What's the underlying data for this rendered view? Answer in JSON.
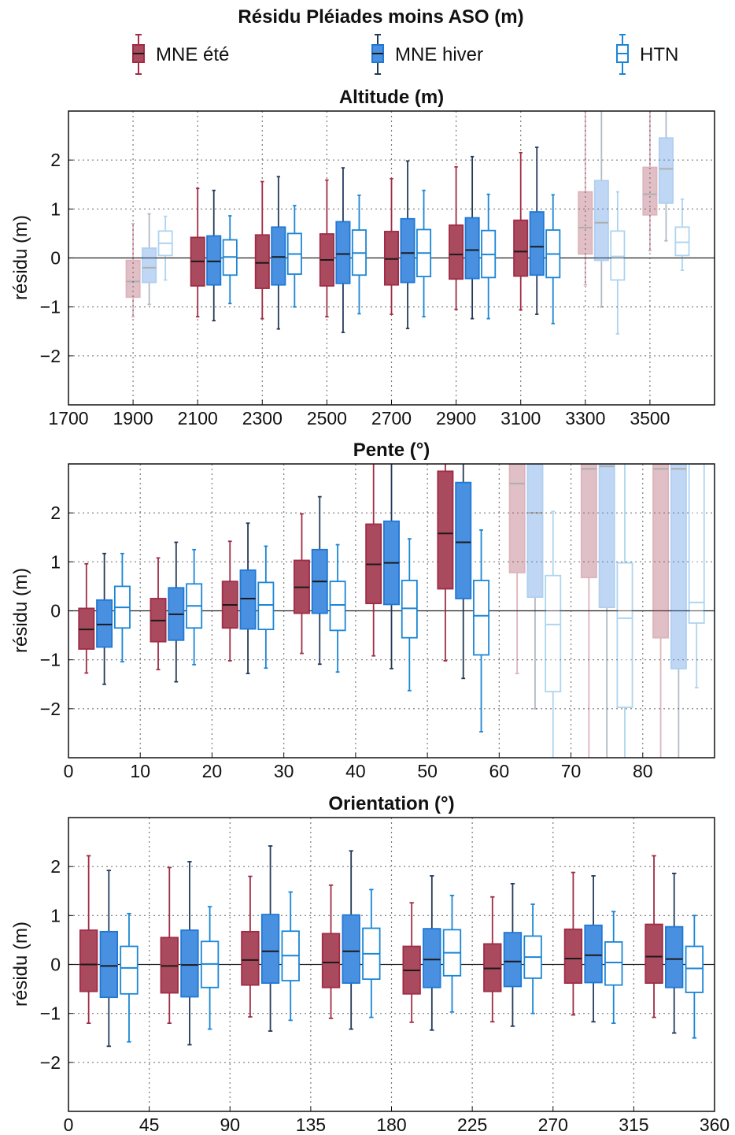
{
  "figure": {
    "title": "Résidu Pléiades moins ASO (m)"
  },
  "legend": {
    "items": [
      {
        "label": "MNE été",
        "color": "#a02c45",
        "filled": true
      },
      {
        "label": "MNE hiver",
        "color": "#1f78d6",
        "filled": true
      },
      {
        "label": "HTN",
        "color": "#1a86d6",
        "filled": false
      }
    ]
  },
  "colors": {
    "ete": "#a02c45",
    "hiver": "#1f78d6",
    "htn": "#1a86d6",
    "whisker_hiver": "#243a5a",
    "zero_line": "#222222",
    "grid": "#7a7a7a"
  },
  "chart_data": [
    {
      "type": "box",
      "title": "Altitude (m)",
      "ylabel": "résidu (m)",
      "xlim": [
        1700,
        3700
      ],
      "ylim": [
        -3,
        3
      ],
      "xticks": [
        1700,
        1900,
        2100,
        2300,
        2500,
        2700,
        2900,
        3100,
        3300,
        3500
      ],
      "yticks": [
        -2,
        -1,
        0,
        1,
        2
      ],
      "grid": true,
      "groups": [
        {
          "x": 1950,
          "faded": true,
          "ete": {
            "min": -1.2,
            "q1": -0.8,
            "median": -0.48,
            "q3": -0.05,
            "max": 0.7
          },
          "hiver": {
            "min": -0.95,
            "q1": -0.5,
            "median": -0.2,
            "q3": 0.2,
            "max": 0.9
          },
          "htn": {
            "min": -0.45,
            "q1": 0.05,
            "median": 0.3,
            "q3": 0.55,
            "max": 0.85
          }
        },
        {
          "x": 2150,
          "faded": false,
          "ete": {
            "min": -1.2,
            "q1": -0.57,
            "median": -0.07,
            "q3": 0.42,
            "max": 1.42
          },
          "hiver": {
            "min": -1.28,
            "q1": -0.55,
            "median": -0.07,
            "q3": 0.45,
            "max": 1.38
          },
          "htn": {
            "min": -0.93,
            "q1": -0.35,
            "median": 0.02,
            "q3": 0.37,
            "max": 0.86
          }
        },
        {
          "x": 2350,
          "faded": false,
          "ete": {
            "min": -1.24,
            "q1": -0.62,
            "median": -0.1,
            "q3": 0.47,
            "max": 1.56
          },
          "hiver": {
            "min": -1.45,
            "q1": -0.55,
            "median": 0.02,
            "q3": 0.63,
            "max": 1.66
          },
          "htn": {
            "min": -1.0,
            "q1": -0.33,
            "median": 0.08,
            "q3": 0.5,
            "max": 1.07
          }
        },
        {
          "x": 2550,
          "faded": false,
          "ete": {
            "min": -1.2,
            "q1": -0.57,
            "median": -0.04,
            "q3": 0.49,
            "max": 1.59
          },
          "hiver": {
            "min": -1.52,
            "q1": -0.52,
            "median": 0.08,
            "q3": 0.74,
            "max": 1.84
          },
          "htn": {
            "min": -1.14,
            "q1": -0.35,
            "median": 0.1,
            "q3": 0.57,
            "max": 1.28
          }
        },
        {
          "x": 2750,
          "faded": false,
          "ete": {
            "min": -1.15,
            "q1": -0.55,
            "median": -0.02,
            "q3": 0.54,
            "max": 1.62
          },
          "hiver": {
            "min": -1.44,
            "q1": -0.5,
            "median": 0.1,
            "q3": 0.8,
            "max": 1.98
          },
          "htn": {
            "min": -1.2,
            "q1": -0.38,
            "median": 0.1,
            "q3": 0.58,
            "max": 1.38
          }
        },
        {
          "x": 2950,
          "faded": false,
          "ete": {
            "min": -1.05,
            "q1": -0.43,
            "median": 0.07,
            "q3": 0.67,
            "max": 1.86
          },
          "hiver": {
            "min": -1.24,
            "q1": -0.42,
            "median": 0.16,
            "q3": 0.82,
            "max": 2.07
          },
          "htn": {
            "min": -1.24,
            "q1": -0.4,
            "median": 0.07,
            "q3": 0.56,
            "max": 1.3
          }
        },
        {
          "x": 3150,
          "faded": false,
          "ete": {
            "min": -1.06,
            "q1": -0.37,
            "median": 0.13,
            "q3": 0.77,
            "max": 2.15
          },
          "hiver": {
            "min": -1.15,
            "q1": -0.35,
            "median": 0.23,
            "q3": 0.94,
            "max": 2.26
          },
          "htn": {
            "min": -1.34,
            "q1": -0.4,
            "median": 0.08,
            "q3": 0.57,
            "max": 1.29
          }
        },
        {
          "x": 3350,
          "faded": true,
          "ete": {
            "min": -0.55,
            "q1": 0.08,
            "median": 0.62,
            "q3": 1.35,
            "max": 3.2
          },
          "hiver": {
            "min": -1.0,
            "q1": -0.05,
            "median": 0.72,
            "q3": 1.58,
            "max": 3.2
          },
          "htn": {
            "min": -1.55,
            "q1": -0.45,
            "median": 0.03,
            "q3": 0.55,
            "max": 1.35
          }
        },
        {
          "x": 3550,
          "faded": true,
          "ete": {
            "min": 0.15,
            "q1": 0.88,
            "median": 1.3,
            "q3": 1.85,
            "max": 3.2
          },
          "hiver": {
            "min": 0.35,
            "q1": 1.12,
            "median": 1.82,
            "q3": 2.45,
            "max": 3.2
          },
          "htn": {
            "min": -0.25,
            "q1": 0.05,
            "median": 0.32,
            "q3": 0.63,
            "max": 1.2
          }
        }
      ]
    },
    {
      "type": "box",
      "title": "Pente (°)",
      "ylabel": "résidu (m)",
      "xlim": [
        0,
        90
      ],
      "ylim": [
        -3,
        3
      ],
      "xticks": [
        0,
        10,
        20,
        30,
        40,
        50,
        60,
        70,
        80
      ],
      "yticks": [
        -2,
        -1,
        0,
        1,
        2
      ],
      "grid": true,
      "groups": [
        {
          "x": 5,
          "faded": false,
          "ete": {
            "min": -1.27,
            "q1": -0.78,
            "median": -0.38,
            "q3": 0.05,
            "max": 0.96
          },
          "hiver": {
            "min": -1.5,
            "q1": -0.74,
            "median": -0.28,
            "q3": 0.22,
            "max": 1.17
          },
          "htn": {
            "min": -1.04,
            "q1": -0.35,
            "median": 0.07,
            "q3": 0.5,
            "max": 1.17
          }
        },
        {
          "x": 15,
          "faded": false,
          "ete": {
            "min": -1.2,
            "q1": -0.63,
            "median": -0.2,
            "q3": 0.25,
            "max": 1.08
          },
          "hiver": {
            "min": -1.45,
            "q1": -0.6,
            "median": -0.07,
            "q3": 0.47,
            "max": 1.4
          },
          "htn": {
            "min": -1.1,
            "q1": -0.35,
            "median": 0.1,
            "q3": 0.55,
            "max": 1.25
          }
        },
        {
          "x": 25,
          "faded": false,
          "ete": {
            "min": -1.02,
            "q1": -0.35,
            "median": 0.12,
            "q3": 0.6,
            "max": 1.42
          },
          "hiver": {
            "min": -1.28,
            "q1": -0.37,
            "median": 0.25,
            "q3": 0.83,
            "max": 1.79
          },
          "htn": {
            "min": -1.17,
            "q1": -0.38,
            "median": 0.12,
            "q3": 0.58,
            "max": 1.32
          }
        },
        {
          "x": 35,
          "faded": false,
          "ete": {
            "min": -0.87,
            "q1": -0.05,
            "median": 0.48,
            "q3": 1.03,
            "max": 1.98
          },
          "hiver": {
            "min": -1.09,
            "q1": -0.05,
            "median": 0.6,
            "q3": 1.25,
            "max": 2.33
          },
          "htn": {
            "min": -1.25,
            "q1": -0.4,
            "median": 0.12,
            "q3": 0.6,
            "max": 1.35
          }
        },
        {
          "x": 45,
          "faded": false,
          "ete": {
            "min": -0.92,
            "q1": 0.15,
            "median": 0.95,
            "q3": 1.77,
            "max": 3.2
          },
          "hiver": {
            "min": -1.18,
            "q1": 0.13,
            "median": 0.98,
            "q3": 1.83,
            "max": 3.2
          },
          "htn": {
            "min": -1.63,
            "q1": -0.55,
            "median": 0.05,
            "q3": 0.62,
            "max": 1.47
          }
        },
        {
          "x": 55,
          "faded": false,
          "ete": {
            "min": -1.02,
            "q1": 0.45,
            "median": 1.58,
            "q3": 2.85,
            "max": 3.2
          },
          "hiver": {
            "min": -1.38,
            "q1": 0.25,
            "median": 1.4,
            "q3": 2.62,
            "max": 3.2
          },
          "htn": {
            "min": -2.47,
            "q1": -0.9,
            "median": -0.1,
            "q3": 0.62,
            "max": 1.65
          }
        },
        {
          "x": 65,
          "faded": true,
          "ete": {
            "min": -1.28,
            "q1": 0.78,
            "median": 2.6,
            "q3": 3.2,
            "max": 3.2
          },
          "hiver": {
            "min": -2.0,
            "q1": 0.28,
            "median": 2.0,
            "q3": 3.2,
            "max": 3.2
          },
          "htn": {
            "min": -3.2,
            "q1": -1.65,
            "median": -0.28,
            "q3": 0.72,
            "max": 2.03
          }
        },
        {
          "x": 75,
          "faded": true,
          "ete": {
            "min": -3.2,
            "q1": 0.68,
            "median": 2.9,
            "q3": 3.2,
            "max": 3.2
          },
          "hiver": {
            "min": -3.2,
            "q1": 0.07,
            "median": 2.95,
            "q3": 3.2,
            "max": 3.2
          },
          "htn": {
            "min": -3.2,
            "q1": -1.97,
            "median": -0.15,
            "q3": 0.98,
            "max": 3.2
          }
        },
        {
          "x": 85,
          "faded": true,
          "ete": {
            "min": -3.2,
            "q1": -0.55,
            "median": 2.9,
            "q3": 3.2,
            "max": 3.2
          },
          "hiver": {
            "min": -3.2,
            "q1": -1.18,
            "median": 2.9,
            "q3": 3.2,
            "max": 3.2
          },
          "htn": {
            "min": -1.57,
            "q1": -0.25,
            "median": 0.17,
            "q3": 3.2,
            "max": 3.2
          }
        }
      ]
    },
    {
      "type": "box",
      "title": "Orientation (°)",
      "ylabel": "résidu (m)",
      "xlim": [
        0,
        360
      ],
      "ylim": [
        -3,
        3
      ],
      "xticks": [
        0,
        45,
        90,
        135,
        180,
        225,
        270,
        315,
        360
      ],
      "yticks": [
        -2,
        -1,
        0,
        1,
        2
      ],
      "grid": true,
      "groups": [
        {
          "x": 22.5,
          "faded": false,
          "ete": {
            "min": -1.2,
            "q1": -0.55,
            "median": 0.0,
            "q3": 0.7,
            "max": 2.22
          },
          "hiver": {
            "min": -1.67,
            "q1": -0.67,
            "median": -0.03,
            "q3": 0.67,
            "max": 1.92
          },
          "htn": {
            "min": -1.58,
            "q1": -0.6,
            "median": -0.07,
            "q3": 0.37,
            "max": 1.04
          }
        },
        {
          "x": 67.5,
          "faded": false,
          "ete": {
            "min": -1.2,
            "q1": -0.58,
            "median": -0.03,
            "q3": 0.55,
            "max": 1.98
          },
          "hiver": {
            "min": -1.64,
            "q1": -0.66,
            "median": -0.01,
            "q3": 0.7,
            "max": 2.1
          },
          "htn": {
            "min": -1.32,
            "q1": -0.47,
            "median": 0.01,
            "q3": 0.47,
            "max": 1.18
          }
        },
        {
          "x": 112.5,
          "faded": false,
          "ete": {
            "min": -1.07,
            "q1": -0.42,
            "median": 0.09,
            "q3": 0.67,
            "max": 1.8
          },
          "hiver": {
            "min": -1.36,
            "q1": -0.38,
            "median": 0.27,
            "q3": 1.02,
            "max": 2.42
          },
          "htn": {
            "min": -1.14,
            "q1": -0.33,
            "median": 0.18,
            "q3": 0.68,
            "max": 1.48
          }
        },
        {
          "x": 157.5,
          "faded": false,
          "ete": {
            "min": -1.1,
            "q1": -0.47,
            "median": 0.04,
            "q3": 0.63,
            "max": 1.62
          },
          "hiver": {
            "min": -1.32,
            "q1": -0.38,
            "median": 0.27,
            "q3": 1.01,
            "max": 2.32
          },
          "htn": {
            "min": -1.08,
            "q1": -0.3,
            "median": 0.22,
            "q3": 0.74,
            "max": 1.53
          }
        },
        {
          "x": 202.5,
          "faded": false,
          "ete": {
            "min": -1.18,
            "q1": -0.6,
            "median": -0.12,
            "q3": 0.37,
            "max": 1.26
          },
          "hiver": {
            "min": -1.34,
            "q1": -0.47,
            "median": 0.1,
            "q3": 0.73,
            "max": 1.81
          },
          "htn": {
            "min": -0.97,
            "q1": -0.23,
            "median": 0.24,
            "q3": 0.71,
            "max": 1.41
          }
        },
        {
          "x": 247.5,
          "faded": false,
          "ete": {
            "min": -1.17,
            "q1": -0.55,
            "median": -0.08,
            "q3": 0.42,
            "max": 1.38
          },
          "hiver": {
            "min": -1.26,
            "q1": -0.45,
            "median": 0.06,
            "q3": 0.65,
            "max": 1.65
          },
          "htn": {
            "min": -1.0,
            "q1": -0.28,
            "median": 0.15,
            "q3": 0.58,
            "max": 1.23
          }
        },
        {
          "x": 292.5,
          "faded": false,
          "ete": {
            "min": -1.03,
            "q1": -0.38,
            "median": 0.12,
            "q3": 0.72,
            "max": 1.88
          },
          "hiver": {
            "min": -1.17,
            "q1": -0.37,
            "median": 0.19,
            "q3": 0.8,
            "max": 1.81
          },
          "htn": {
            "min": -1.2,
            "q1": -0.42,
            "median": 0.04,
            "q3": 0.46,
            "max": 1.08
          }
        },
        {
          "x": 337.5,
          "faded": false,
          "ete": {
            "min": -1.08,
            "q1": -0.38,
            "median": 0.16,
            "q3": 0.82,
            "max": 2.22
          },
          "hiver": {
            "min": -1.4,
            "q1": -0.47,
            "median": 0.11,
            "q3": 0.77,
            "max": 1.86
          },
          "htn": {
            "min": -1.5,
            "q1": -0.57,
            "median": -0.08,
            "q3": 0.37,
            "max": 1.0
          }
        }
      ]
    }
  ]
}
